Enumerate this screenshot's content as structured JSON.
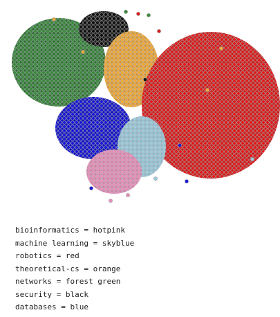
{
  "legend": [
    "bioinformatics = hotpink",
    "machine learning = skyblue",
    "robotics = red",
    "theoretical-cs = orange",
    "networks = forest green",
    "security = black",
    "databases = blue"
  ]
}
